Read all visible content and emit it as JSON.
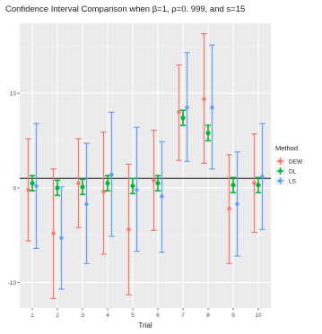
{
  "chart_data": {
    "type": "errorbar",
    "title": "Confidence Interval Comparison when β=1, ρ=0. 999, and s=15",
    "xlabel": "Trial",
    "ylabel": "",
    "categories": [
      "1",
      "2",
      "3",
      "4",
      "5",
      "6",
      "7",
      "8",
      "9",
      "10"
    ],
    "ylim": [
      -12.7,
      17.4
    ],
    "yticks": [
      -10,
      0,
      10
    ],
    "reference_line": 1,
    "grid": true,
    "legend": {
      "title": "Method",
      "position": "right"
    },
    "series": [
      {
        "name": "DEW",
        "color": "#F8766D",
        "points": [
          {
            "estimate": -0.2,
            "lower": -5.6,
            "upper": 5.2
          },
          {
            "estimate": -4.8,
            "lower": -11.7,
            "upper": 2.0
          },
          {
            "estimate": 0.5,
            "lower": -4.2,
            "upper": 5.2
          },
          {
            "estimate": -0.4,
            "lower": -7.0,
            "upper": 5.9
          },
          {
            "estimate": -4.4,
            "lower": -11.3,
            "upper": 2.5
          },
          {
            "estimate": 0.8,
            "lower": -4.5,
            "upper": 6.1
          },
          {
            "estimate": 8.0,
            "lower": 2.9,
            "upper": 13.0
          },
          {
            "estimate": 9.4,
            "lower": 2.6,
            "upper": 16.3
          },
          {
            "estimate": -2.2,
            "lower": -8.0,
            "upper": 3.5
          },
          {
            "estimate": 0.5,
            "lower": -4.7,
            "upper": 5.7
          }
        ]
      },
      {
        "name": "DL",
        "color": "#00BA38",
        "points": [
          {
            "estimate": 0.5,
            "lower": -0.3,
            "upper": 1.3
          },
          {
            "estimate": 0.0,
            "lower": -0.8,
            "upper": 0.8
          },
          {
            "estimate": 0.1,
            "lower": -0.7,
            "upper": 0.9
          },
          {
            "estimate": 0.5,
            "lower": -0.3,
            "upper": 1.3
          },
          {
            "estimate": 0.2,
            "lower": -0.6,
            "upper": 1.0
          },
          {
            "estimate": 0.5,
            "lower": -0.3,
            "upper": 1.3
          },
          {
            "estimate": 7.4,
            "lower": 6.6,
            "upper": 8.2
          },
          {
            "estimate": 5.8,
            "lower": 5.0,
            "upper": 6.6
          },
          {
            "estimate": 0.3,
            "lower": -0.5,
            "upper": 1.1
          },
          {
            "estimate": 0.3,
            "lower": -0.5,
            "upper": 1.1
          }
        ]
      },
      {
        "name": "LS",
        "color": "#619CFF",
        "points": [
          {
            "estimate": 0.2,
            "lower": -6.4,
            "upper": 6.8
          },
          {
            "estimate": -5.3,
            "lower": -10.7,
            "upper": 0.1
          },
          {
            "estimate": -1.7,
            "lower": -8.0,
            "upper": 4.7
          },
          {
            "estimate": 1.4,
            "lower": -5.1,
            "upper": 8.0
          },
          {
            "estimate": -0.2,
            "lower": -6.7,
            "upper": 6.4
          },
          {
            "estimate": -0.9,
            "lower": -6.8,
            "upper": 4.9
          },
          {
            "estimate": 8.5,
            "lower": 2.8,
            "upper": 14.3
          },
          {
            "estimate": 8.5,
            "lower": 2.0,
            "upper": 15.1
          },
          {
            "estimate": -1.7,
            "lower": -7.2,
            "upper": 3.8
          },
          {
            "estimate": 1.2,
            "lower": -4.4,
            "upper": 6.8
          }
        ]
      }
    ]
  }
}
